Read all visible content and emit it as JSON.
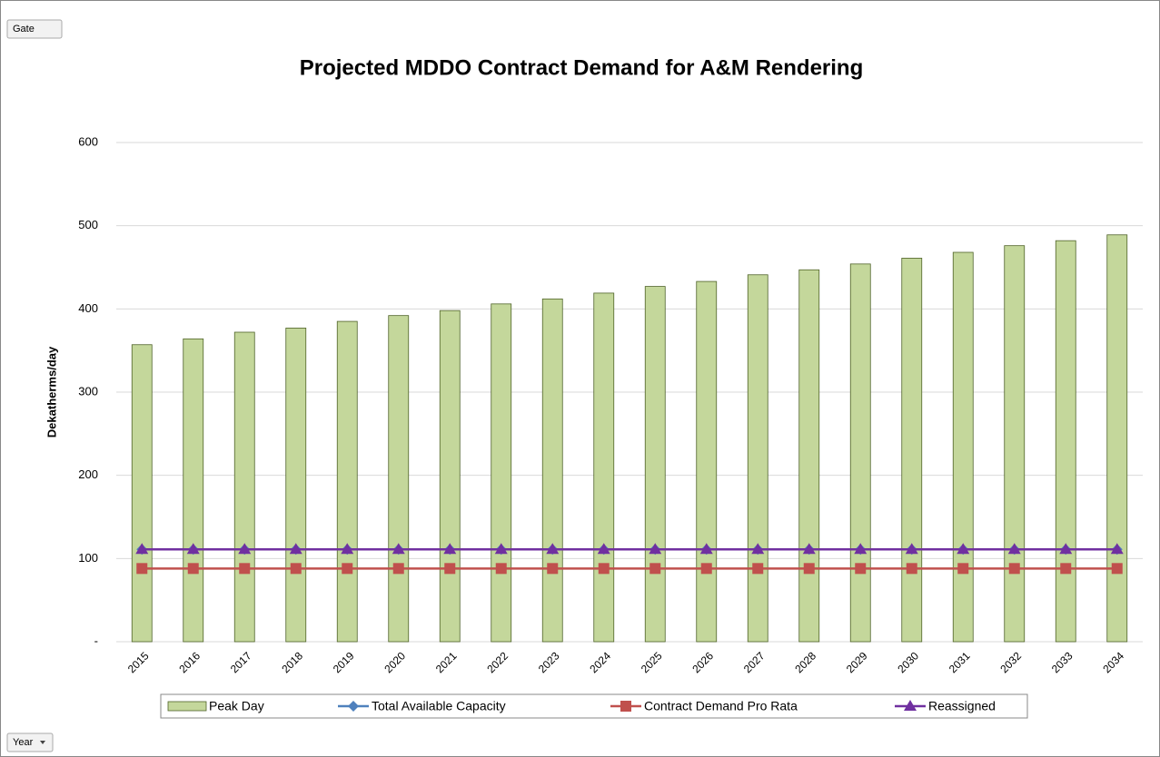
{
  "field_buttons": {
    "filter": "Gate",
    "axis": "Year"
  },
  "chart_data": {
    "type": "bar",
    "title": "Projected MDDO Contract Demand for A&M Rendering",
    "y_label": "Dekatherms/day",
    "categories": [
      "2015",
      "2016",
      "2017",
      "2018",
      "2019",
      "2020",
      "2021",
      "2022",
      "2023",
      "2024",
      "2025",
      "2026",
      "2027",
      "2028",
      "2029",
      "2030",
      "2031",
      "2032",
      "2033",
      "2034"
    ],
    "series": [
      {
        "name": "Peak Day",
        "type": "bar",
        "color": "#c4d79b",
        "values": [
          357,
          364,
          372,
          377,
          385,
          392,
          398,
          406,
          412,
          419,
          427,
          433,
          441,
          447,
          454,
          461,
          468,
          476,
          482,
          489
        ]
      },
      {
        "name": "Total Available Capacity",
        "type": "line",
        "marker": "diamond",
        "color": "#4f81bd",
        "values": [
          111,
          111,
          111,
          111,
          111,
          111,
          111,
          111,
          111,
          111,
          111,
          111,
          111,
          111,
          111,
          111,
          111,
          111,
          111,
          111
        ]
      },
      {
        "name": "Contract Demand Pro Rata",
        "type": "line",
        "marker": "square",
        "color": "#c0504d",
        "values": [
          88,
          88,
          88,
          88,
          88,
          88,
          88,
          88,
          88,
          88,
          88,
          88,
          88,
          88,
          88,
          88,
          88,
          88,
          88,
          88
        ]
      },
      {
        "name": "Reassigned",
        "type": "line",
        "marker": "triangle",
        "color": "#7030a0",
        "values": [
          111,
          111,
          111,
          111,
          111,
          111,
          111,
          111,
          111,
          111,
          111,
          111,
          111,
          111,
          111,
          111,
          111,
          111,
          111,
          111
        ]
      }
    ],
    "ylim": [
      0,
      600
    ],
    "yticks": [
      {
        "value": 0,
        "label": "-"
      },
      100,
      200,
      300,
      400,
      500,
      600
    ],
    "grid": true,
    "legend": "bottom"
  }
}
